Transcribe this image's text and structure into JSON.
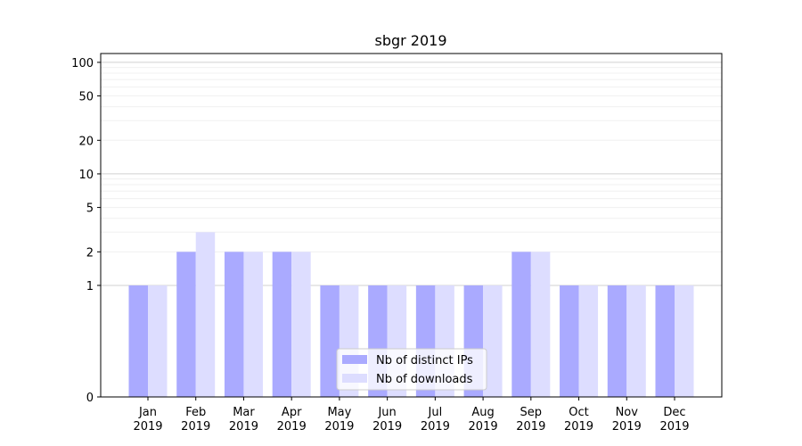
{
  "chart_data": {
    "type": "bar",
    "title": "sbgr 2019",
    "xlabel": "",
    "ylabel": "",
    "y_scale": "symlog",
    "ylim": [
      0,
      120
    ],
    "y_ticks": [
      0,
      1,
      2,
      5,
      10,
      20,
      50,
      100
    ],
    "grid": true,
    "legend_placement": "bottom-center",
    "categories": [
      [
        "Jan",
        "2019"
      ],
      [
        "Feb",
        "2019"
      ],
      [
        "Mar",
        "2019"
      ],
      [
        "Apr",
        "2019"
      ],
      [
        "May",
        "2019"
      ],
      [
        "Jun",
        "2019"
      ],
      [
        "Jul",
        "2019"
      ],
      [
        "Aug",
        "2019"
      ],
      [
        "Sep",
        "2019"
      ],
      [
        "Oct",
        "2019"
      ],
      [
        "Nov",
        "2019"
      ],
      [
        "Dec",
        "2019"
      ]
    ],
    "series": [
      {
        "name": "Nb of distinct IPs",
        "color": "#aaaaff",
        "values": [
          1,
          2,
          2,
          2,
          1,
          1,
          1,
          1,
          2,
          1,
          1,
          1
        ]
      },
      {
        "name": "Nb of downloads",
        "color": "#ddddff",
        "values": [
          1,
          3,
          2,
          2,
          1,
          1,
          1,
          1,
          2,
          1,
          1,
          1
        ]
      }
    ]
  }
}
